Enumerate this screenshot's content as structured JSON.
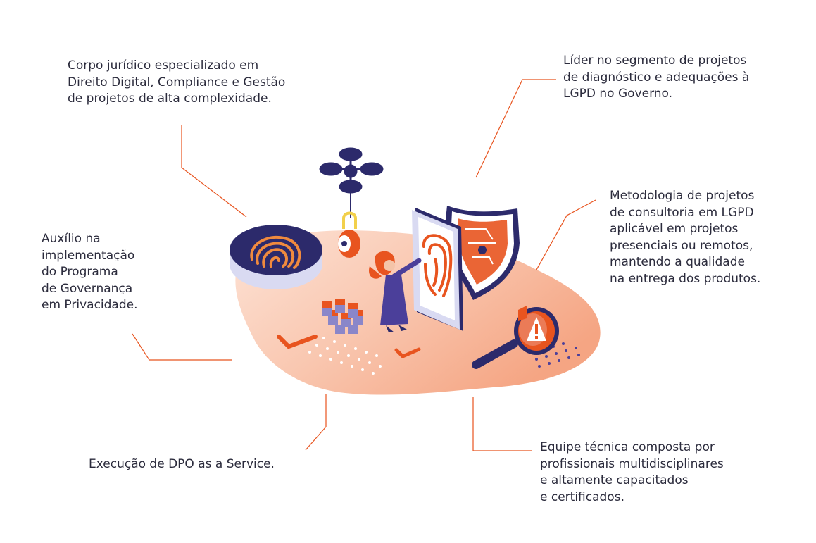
{
  "labels": {
    "top_left": "Corpo jurídico especializado em\nDireito Digital, Compliance e Gestão\nde projetos de alta complexidade.",
    "top_right": "Líder no segmento de projetos\nde diagnóstico e adequações à\nLGPD no Governo.",
    "mid_left": "Auxílio na\nimplementação\ndo Programa\nde Governança\nem Privacidade.",
    "mid_right": "Metodologia de projetos\nde consultoria em LGPD\naplicável em projetos\npresenciais ou remotos,\nmantendo a qualidade\nna entrega dos produtos.",
    "bottom_left": "Execução de DPO as a Service.",
    "bottom_right": "Equipe técnica composta por\nprofissionais multidisciplinares\ne altamente capacitados\ne certificados."
  },
  "colors": {
    "accent": "#e8541f",
    "navy": "#2c2a6b",
    "blob": "#f7c3ad",
    "text": "#2b2b3c"
  },
  "icons": [
    "fingerprint-icon",
    "drone-icon",
    "padlock-icon",
    "shield-icon",
    "magnifier-icon",
    "warning-icon",
    "checkmark-icon",
    "server-blocks-icon",
    "person-icon",
    "tablet-icon"
  ]
}
